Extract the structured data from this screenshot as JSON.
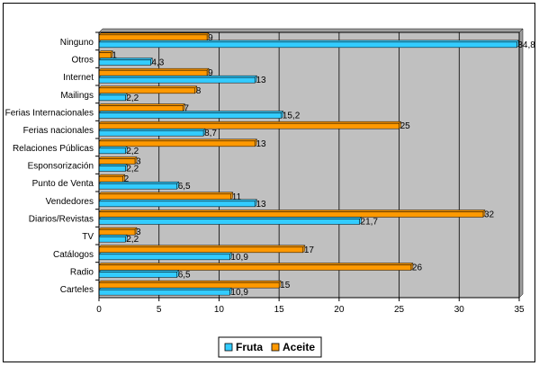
{
  "chart_data": {
    "type": "bar",
    "orientation": "horizontal",
    "categories": [
      "Ninguno",
      "Otros",
      "Internet",
      "Mailings",
      "Ferias Internacionales",
      "Ferias nacionales",
      "Relaciones Públicas",
      "Esponsorización",
      "Punto de Venta",
      "Vendedores",
      "Diarios/Revistas",
      "TV",
      "Catálogos",
      "Radio",
      "Carteles"
    ],
    "series": [
      {
        "name": "Fruta",
        "color": "#33CCFF",
        "values": [
          34.8,
          4.3,
          13,
          2.2,
          15.2,
          8.7,
          2.2,
          2.2,
          6.5,
          13,
          21.7,
          2.2,
          10.9,
          6.5,
          10.9
        ],
        "labels": [
          "34,8",
          "4,3",
          "13",
          "2,2",
          "15,2",
          "8,7",
          "2,2",
          "2,2",
          "6,5",
          "13",
          "21,7",
          "2,2",
          "10,9",
          "6,5",
          "10,9"
        ]
      },
      {
        "name": "Aceite",
        "color": "#FF9900",
        "values": [
          9,
          1,
          9,
          8,
          7,
          25,
          13,
          3,
          2,
          11,
          32,
          3,
          17,
          26,
          15
        ],
        "labels": [
          "9",
          "1",
          "9",
          "8",
          "7",
          "25",
          "13",
          "3",
          "2",
          "11",
          "32",
          "3",
          "17",
          "26",
          "15"
        ]
      }
    ],
    "xlim": [
      0,
      35
    ],
    "xticks": [
      "0",
      "5",
      "10",
      "15",
      "20",
      "25",
      "30",
      "35"
    ],
    "xtick_values": [
      0,
      5,
      10,
      15,
      20,
      25,
      30,
      35
    ],
    "grid": true,
    "plot_background": "#C0C0C0",
    "legend_position": "bottom",
    "title": "",
    "xlabel": "",
    "ylabel": ""
  }
}
